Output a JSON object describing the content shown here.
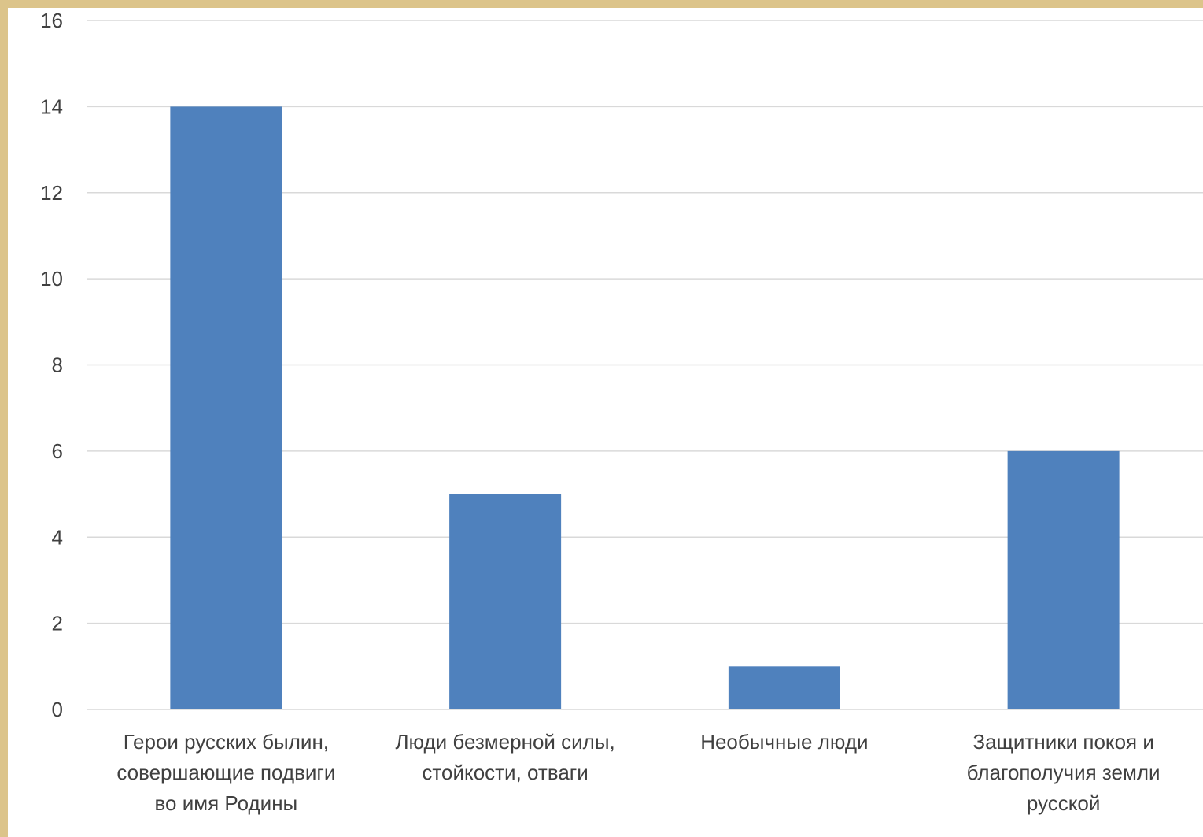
{
  "chart_data": {
    "type": "bar",
    "categories": [
      [
        "Герои русских былин,",
        "совершающие подвиги",
        "во имя Родины"
      ],
      [
        "Люди безмерной силы,",
        "стойкости, отваги"
      ],
      [
        "Необычные люди"
      ],
      [
        "Защитники покоя и",
        "благополучия земли",
        "русской"
      ]
    ],
    "values": [
      14,
      5,
      1,
      6
    ],
    "ylim": [
      0,
      16
    ],
    "yticks": [
      0,
      2,
      4,
      6,
      8,
      10,
      12,
      14,
      16
    ],
    "grid": true,
    "legend": "none",
    "colors": {
      "bar": "#4f81bd",
      "grid": "#d9d9d9",
      "background": "#ffffff",
      "border": "#dcc48a"
    }
  }
}
